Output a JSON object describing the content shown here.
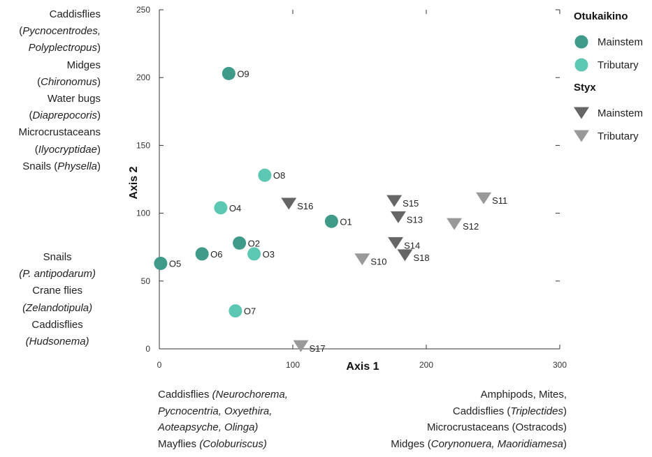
{
  "chart_data": {
    "type": "scatter",
    "xlabel": "Axis 1",
    "ylabel": "Axis 2",
    "xlim": [
      0,
      300
    ],
    "ylim": [
      0,
      250
    ],
    "xticks": [
      0,
      100,
      200,
      300
    ],
    "yticks": [
      0,
      50,
      100,
      150,
      200,
      250
    ],
    "grid": false,
    "legend_placement": "right",
    "legend": [
      {
        "group": "Otukaikino",
        "entries": [
          {
            "label": "Mainstem",
            "marker": "circle",
            "color": "#3f9a8a"
          },
          {
            "label": "Tributary",
            "marker": "circle",
            "color": "#5cc8b4"
          }
        ]
      },
      {
        "group": "Styx",
        "entries": [
          {
            "label": "Mainstem",
            "marker": "triangle-down",
            "color": "#666666"
          },
          {
            "label": "Tributary",
            "marker": "triangle-down",
            "color": "#999999"
          }
        ]
      }
    ],
    "series": [
      {
        "group": "Otukaikino",
        "type": "Mainstem",
        "points": [
          {
            "label": "O1",
            "x": 129,
            "y": 94
          },
          {
            "label": "O2",
            "x": 60,
            "y": 78
          },
          {
            "label": "O5",
            "x": 1,
            "y": 63
          },
          {
            "label": "O6",
            "x": 32,
            "y": 70
          },
          {
            "label": "O9",
            "x": 52,
            "y": 203
          }
        ]
      },
      {
        "group": "Otukaikino",
        "type": "Tributary",
        "points": [
          {
            "label": "O3",
            "x": 71,
            "y": 70
          },
          {
            "label": "O4",
            "x": 46,
            "y": 104
          },
          {
            "label": "O7",
            "x": 57,
            "y": 28
          },
          {
            "label": "O8",
            "x": 79,
            "y": 128
          }
        ]
      },
      {
        "group": "Styx",
        "type": "Mainstem",
        "points": [
          {
            "label": "S13",
            "x": 179,
            "y": 97
          },
          {
            "label": "S14",
            "x": 177,
            "y": 78
          },
          {
            "label": "S15",
            "x": 176,
            "y": 109
          },
          {
            "label": "S16",
            "x": 97,
            "y": 107
          },
          {
            "label": "S18",
            "x": 184,
            "y": 69
          }
        ]
      },
      {
        "group": "Styx",
        "type": "Tributary",
        "points": [
          {
            "label": "S10",
            "x": 152,
            "y": 66
          },
          {
            "label": "S11",
            "x": 243,
            "y": 111
          },
          {
            "label": "S12",
            "x": 221,
            "y": 92
          },
          {
            "label": "S17",
            "x": 106,
            "y": 2
          }
        ]
      }
    ],
    "annotations": {
      "left_top": [
        [
          {
            "t": "Caddisflies",
            "i": false
          }
        ],
        [
          {
            "t": "(",
            "i": false
          },
          {
            "t": "Pycnocentrodes,",
            "i": true
          }
        ],
        [
          {
            "t": "Polyplectropus",
            "i": true
          },
          {
            "t": ")",
            "i": false
          }
        ],
        [
          {
            "t": "Midges",
            "i": false
          }
        ],
        [
          {
            "t": "(",
            "i": false
          },
          {
            "t": "Chironomus",
            "i": true
          },
          {
            "t": ")",
            "i": false
          }
        ],
        [
          {
            "t": "Water bugs",
            "i": false
          }
        ],
        [
          {
            "t": "(",
            "i": false
          },
          {
            "t": "Diaprepocoris",
            "i": true
          },
          {
            "t": ")",
            "i": false
          }
        ],
        [
          {
            "t": "Microcrustaceans",
            "i": false
          }
        ],
        [
          {
            "t": "(",
            "i": false
          },
          {
            "t": "Ilyocryptidae",
            "i": true
          },
          {
            "t": ")",
            "i": false
          }
        ],
        [
          {
            "t": "Snails (",
            "i": false
          },
          {
            "t": "Physella",
            "i": true
          },
          {
            "t": ")",
            "i": false
          }
        ]
      ],
      "left_bottom": [
        [
          {
            "t": "Snails",
            "i": false
          }
        ],
        [
          {
            "t": "(P. antipodarum)",
            "i": true
          }
        ],
        [
          {
            "t": "Crane flies",
            "i": false
          }
        ],
        [
          {
            "t": "(Zelandotipula)",
            "i": true
          }
        ],
        [
          {
            "t": "Caddisflies",
            "i": false
          }
        ],
        [
          {
            "t": "(Hudsonema)",
            "i": true
          }
        ]
      ],
      "bottom_left": [
        [
          {
            "t": "Caddisflies ",
            "i": false
          },
          {
            "t": "(Neurochorema,",
            "i": true
          }
        ],
        [
          {
            "t": "Pycnocentria, Oxyethira,",
            "i": true
          }
        ],
        [
          {
            "t": "Aoteapsyche, Olinga)",
            "i": true
          }
        ],
        [
          {
            "t": "Mayflies ",
            "i": false
          },
          {
            "t": "(Coloburiscus)",
            "i": true
          }
        ]
      ],
      "bottom_right": [
        [
          {
            "t": "Amphipods, Mites,",
            "i": false
          }
        ],
        [
          {
            "t": "Caddisflies (",
            "i": false
          },
          {
            "t": "Triplectides",
            "i": true
          },
          {
            "t": ")",
            "i": false
          }
        ],
        [
          {
            "t": "Microcrustaceans (Ostracods)",
            "i": false
          }
        ],
        [
          {
            "t": "Midges (",
            "i": false
          },
          {
            "t": "Corynonuera, Maoridiamesa",
            "i": true
          },
          {
            "t": ")",
            "i": false
          }
        ]
      ]
    }
  }
}
